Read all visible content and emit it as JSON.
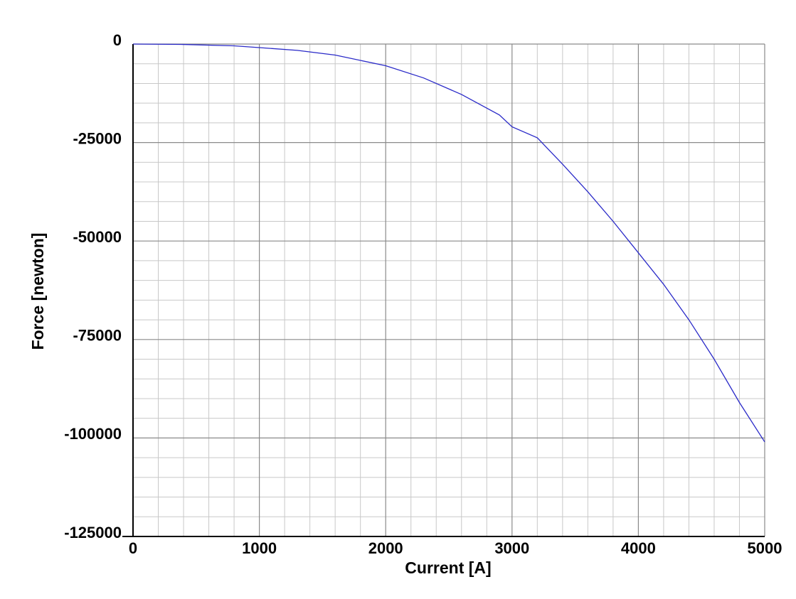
{
  "chart_data": {
    "type": "line",
    "xlabel": "Current [A]",
    "ylabel": "Force [newton]",
    "x": [
      0,
      400,
      800,
      1000,
      1300,
      1600,
      2000,
      2300,
      2600,
      2900,
      3000,
      3200,
      3400,
      3600,
      3800,
      4000,
      4200,
      4400,
      4600,
      4800,
      5000
    ],
    "values": [
      0,
      -100,
      -450,
      -900,
      -1600,
      -2800,
      -5500,
      -8600,
      -12800,
      -18000,
      -21000,
      -23800,
      -30500,
      -37500,
      -45000,
      -53000,
      -61000,
      -70000,
      -80000,
      -91000,
      -101000
    ],
    "color": "#2a2ac8",
    "xlim": [
      0,
      5000
    ],
    "xticks": [
      0,
      1000,
      2000,
      3000,
      4000,
      5000
    ],
    "xminorticks": [
      200,
      400,
      600,
      800,
      1200,
      1400,
      1600,
      1800,
      2200,
      2400,
      2600,
      2800,
      3200,
      3400,
      3600,
      3800,
      4200,
      4400,
      4600,
      4800
    ],
    "ylim": [
      -125000,
      0
    ],
    "yticks": [
      0,
      -25000,
      -50000,
      -75000,
      -100000,
      -125000
    ],
    "yminorticks": [
      -5000,
      -10000,
      -15000,
      -20000,
      -30000,
      -35000,
      -40000,
      -45000,
      -55000,
      -60000,
      -65000,
      -70000,
      -80000,
      -85000,
      -90000,
      -95000,
      -105000,
      -110000,
      -115000,
      -120000
    ],
    "grid": true
  }
}
